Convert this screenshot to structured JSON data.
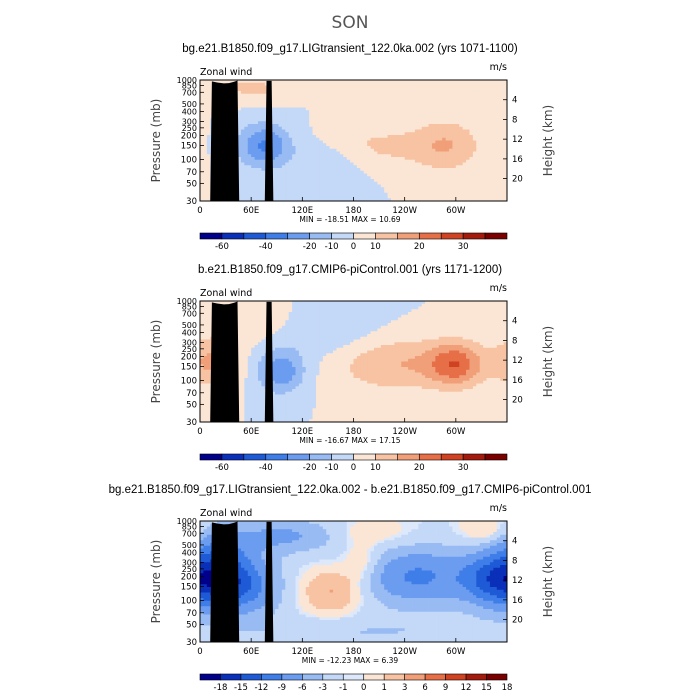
{
  "figure_title": "SON",
  "colors": {
    "scheme_main": [
      "#00008b",
      "#0a2fb8",
      "#1f5ad6",
      "#3f7ee8",
      "#6b9cf0",
      "#98bbf4",
      "#c4d8f7",
      "#fbe6d6",
      "#f7c3a3",
      "#f09f78",
      "#e66f48",
      "#cf4222",
      "#a41a0d",
      "#7a0000"
    ],
    "scheme_diff": [
      "#00008b",
      "#0a2fb8",
      "#1f5ad6",
      "#3f7ee8",
      "#6b9cf0",
      "#98bbf4",
      "#c4d8f7",
      "#dde8fa",
      "#fbe6d6",
      "#f7c3a3",
      "#f09f78",
      "#e66f48",
      "#cf4222",
      "#a41a0d",
      "#7a0000"
    ],
    "topo": "#000000"
  },
  "chart_data": [
    {
      "type": "heatmap",
      "title": "bg.e21.B1850.f09_g17.LIGtransient_122.0ka.002 (yrs 1071-1100)",
      "left_label": "Zonal wind",
      "right_label": "m/s",
      "ylabel": "Pressure (mb)",
      "ylabel_right": "Height (km)",
      "pressure_ticks": [
        "30",
        "50",
        "70",
        "100",
        "150",
        "200",
        "250",
        "300",
        "400",
        "500",
        "700",
        "850",
        "1000"
      ],
      "height_ticks": [
        "20",
        "16",
        "12",
        "8",
        "4"
      ],
      "xticks": [
        "0",
        "60E",
        "120E",
        "180",
        "120W",
        "60W"
      ],
      "min_max": "MIN = -18.51   MAX =  10.69",
      "colorbar_labels": [
        "-60",
        "-40",
        "-20",
        "-10",
        "0",
        "10",
        "20",
        "30"
      ],
      "scheme": "main",
      "features": [
        {
          "lon": 195,
          "p": 145,
          "value": 7,
          "sx": 55,
          "sy": 0.45
        },
        {
          "lon": 290,
          "p": 150,
          "value": 9,
          "sx": 28,
          "sy": 0.55
        },
        {
          "lon": 75,
          "p": 150,
          "value": -16,
          "sx": 22,
          "sy": 0.45
        },
        {
          "lon": 150,
          "p": 110,
          "value": -6,
          "sx": 35,
          "sy": 0.5
        },
        {
          "lon": 35,
          "p": 850,
          "value": 4,
          "sx": 25,
          "sy": 0.3
        },
        {
          "lon": 75,
          "p": 750,
          "value": 5,
          "sx": 20,
          "sy": 0.25
        },
        {
          "lon": 310,
          "p": 800,
          "value": 4,
          "sx": 40,
          "sy": 0.3
        }
      ]
    },
    {
      "type": "heatmap",
      "title": "b.e21.B1850.f09_g17.CMIP6-piControl.001 (yrs 1171-1200)",
      "left_label": "Zonal wind",
      "right_label": "m/s",
      "ylabel": "Pressure (mb)",
      "ylabel_right": "Height (km)",
      "pressure_ticks": [
        "30",
        "50",
        "70",
        "100",
        "150",
        "200",
        "250",
        "300",
        "400",
        "500",
        "700",
        "850",
        "1000"
      ],
      "height_ticks": [
        "20",
        "16",
        "12",
        "8",
        "4"
      ],
      "xticks": [
        "0",
        "60E",
        "120E",
        "180",
        "120W",
        "60W"
      ],
      "min_max": "MIN = -16.67   MAX =  17.15",
      "colorbar_labels": [
        "-60",
        "-40",
        "-20",
        "-10",
        "0",
        "10",
        "20",
        "30"
      ],
      "scheme": "main",
      "features": [
        {
          "lon": 230,
          "p": 160,
          "value": 10,
          "sx": 55,
          "sy": 0.55
        },
        {
          "lon": 300,
          "p": 160,
          "value": 16,
          "sx": 22,
          "sy": 0.45
        },
        {
          "lon": 15,
          "p": 170,
          "value": 11,
          "sx": 22,
          "sy": 0.5
        },
        {
          "lon": 95,
          "p": 130,
          "value": -14,
          "sx": 20,
          "sy": 0.45
        },
        {
          "lon": 60,
          "p": 700,
          "value": 5,
          "sx": 35,
          "sy": 0.5
        },
        {
          "lon": 150,
          "p": 450,
          "value": -5,
          "sx": 40,
          "sy": 0.7
        }
      ]
    },
    {
      "type": "heatmap",
      "title": "bg.e21.B1850.f09_g17.LIGtransient_122.0ka.002 - b.e21.B1850.f09_g17.CMIP6-piControl.001",
      "left_label": "Zonal wind",
      "right_label": "m/s",
      "ylabel": "Pressure (mb)",
      "ylabel_right": "Height (km)",
      "pressure_ticks": [
        "30",
        "50",
        "70",
        "100",
        "150",
        "200",
        "250",
        "300",
        "400",
        "500",
        "700",
        "850",
        "1000"
      ],
      "height_ticks": [
        "20",
        "16",
        "12",
        "8",
        "4"
      ],
      "xticks": [
        "0",
        "60E",
        "120E",
        "180",
        "120W",
        "60W"
      ],
      "min_max": "MIN = -12.23   MAX =   6.39",
      "colorbar_labels": [
        "-18",
        "-15",
        "-12",
        "-9",
        "-6",
        "-3",
        "-1",
        "0",
        "1",
        "3",
        "6",
        "9",
        "12",
        "15",
        "18"
      ],
      "scheme": "diff",
      "features": [
        {
          "lon": 20,
          "p": 180,
          "value": -12,
          "sx": 25,
          "sy": 0.6
        },
        {
          "lon": 60,
          "p": 150,
          "value": -7,
          "sx": 25,
          "sy": 0.6
        },
        {
          "lon": 255,
          "p": 200,
          "value": -8,
          "sx": 45,
          "sy": 0.6
        },
        {
          "lon": 340,
          "p": 180,
          "value": -9,
          "sx": 25,
          "sy": 0.55
        },
        {
          "lon": 155,
          "p": 130,
          "value": 5,
          "sx": 24,
          "sy": 0.45
        },
        {
          "lon": 100,
          "p": 650,
          "value": -5,
          "sx": 45,
          "sy": 0.35
        },
        {
          "lon": 20,
          "p": 450,
          "value": -4,
          "sx": 30,
          "sy": 0.5
        },
        {
          "lon": 200,
          "p": 700,
          "value": 2,
          "sx": 35,
          "sy": 0.3
        },
        {
          "lon": 335,
          "p": 750,
          "value": 3,
          "sx": 20,
          "sy": 0.3
        },
        {
          "lon": 190,
          "p": 300,
          "value": 3,
          "sx": 15,
          "sy": 0.4
        },
        {
          "lon": 180,
          "p": 40,
          "value": -2,
          "sx": 120,
          "sy": 0.3
        }
      ]
    }
  ]
}
